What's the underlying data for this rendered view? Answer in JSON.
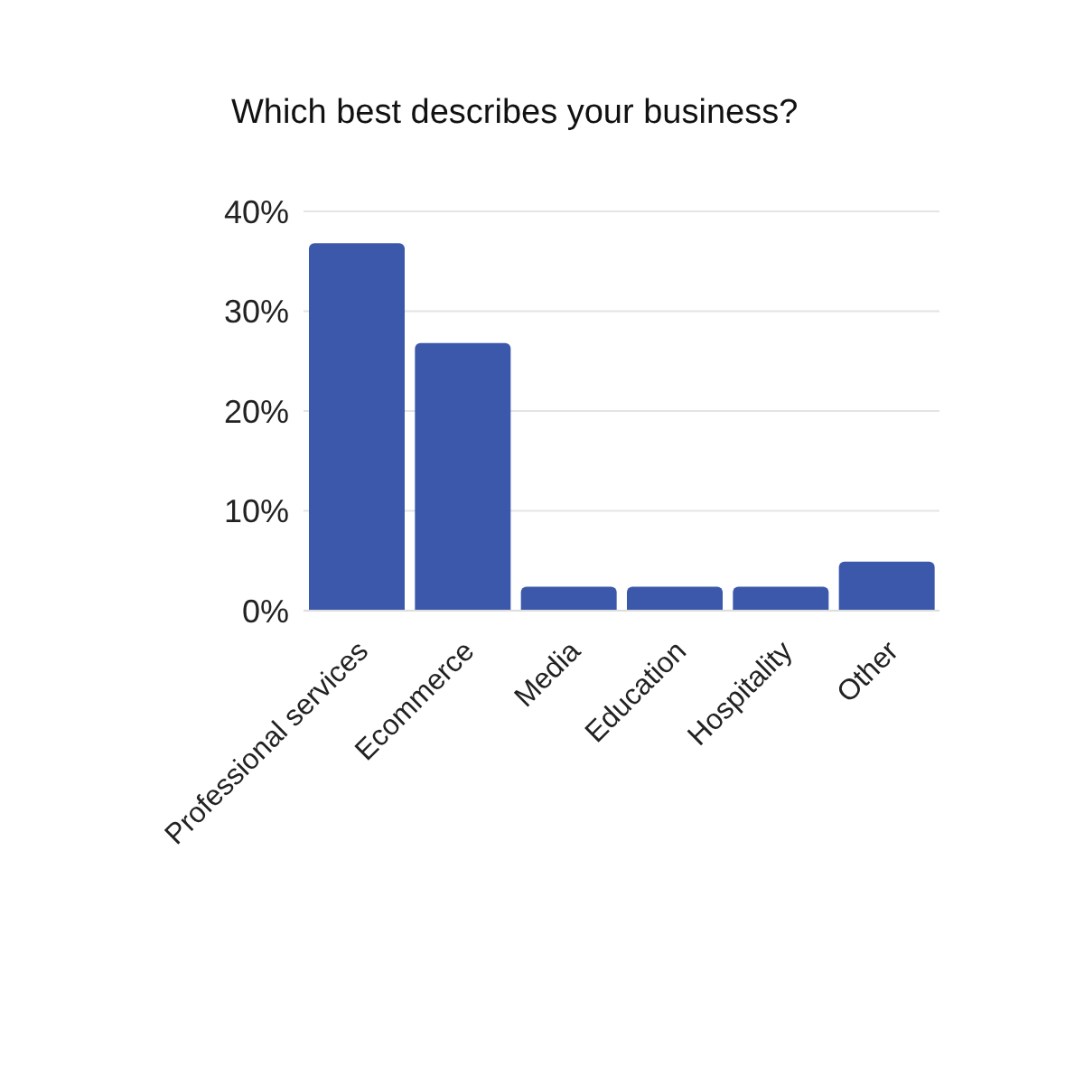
{
  "chart_data": {
    "type": "bar",
    "title": "Which best describes your business?",
    "categories": [
      "Professional services",
      "Ecommerce",
      "Media",
      "Education",
      "Hospitality",
      "Other"
    ],
    "values": [
      36.8,
      26.8,
      2.4,
      2.4,
      2.4,
      4.9
    ],
    "color": "#3c58aa",
    "ylim": [
      0,
      40
    ],
    "yticks": [
      {
        "value": 0,
        "label": "0%"
      },
      {
        "value": 10,
        "label": "10%"
      },
      {
        "value": 20,
        "label": "20%"
      },
      {
        "value": 30,
        "label": "30%"
      },
      {
        "value": 40,
        "label": "40%"
      }
    ],
    "grid": "y",
    "legend": false
  }
}
